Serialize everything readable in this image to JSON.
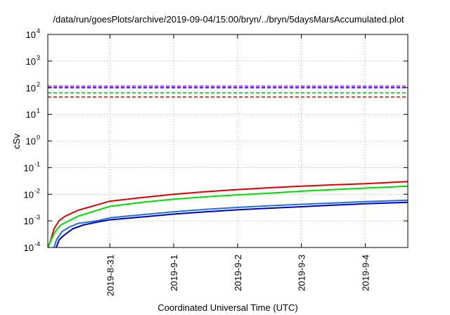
{
  "chart_data": {
    "type": "line",
    "title": "/data/run/goesPlots/archive/2019-09-04/15:00/bryn/../bryn/5daysMarsAccumulated.plot",
    "xlabel": "Coordinated Universal Time (UTC)",
    "ylabel": "cSv",
    "y_scale": "log",
    "ylim": [
      0.0001,
      10000
    ],
    "x_unit": "days (UTC)",
    "xlim": [
      "2019-08-30T00:40",
      "2019-09-04T16:00"
    ],
    "grid": true,
    "legend": "none",
    "y_ticks": [
      {
        "base": "10",
        "exp": "-4",
        "value": 0.0001
      },
      {
        "base": "10",
        "exp": "-3",
        "value": 0.001
      },
      {
        "base": "10",
        "exp": "-2",
        "value": 0.01
      },
      {
        "base": "10",
        "exp": "-1",
        "value": 0.1
      },
      {
        "base": "10",
        "exp": "0",
        "value": 1
      },
      {
        "base": "10",
        "exp": "1",
        "value": 10
      },
      {
        "base": "10",
        "exp": "2",
        "value": 100
      },
      {
        "base": "10",
        "exp": "3",
        "value": 1000
      },
      {
        "base": "10",
        "exp": "4",
        "value": 10000
      }
    ],
    "x_ticks": [
      {
        "label": "2019-8-31",
        "value": "2019-08-31"
      },
      {
        "label": "2019-9-1",
        "value": "2019-09-01"
      },
      {
        "label": "2019-9-2",
        "value": "2019-09-02"
      },
      {
        "label": "2019-9-3",
        "value": "2019-09-03"
      },
      {
        "label": "2019-9-4",
        "value": "2019-09-04"
      }
    ],
    "thresholds": [
      {
        "color": "#9400d3",
        "value": 115
      },
      {
        "color": "#0000ff",
        "value": 100
      },
      {
        "color": "#00c000",
        "value": 65
      },
      {
        "color": "#e00000",
        "value": 45
      }
    ],
    "series": [
      {
        "color": "#e00000",
        "x": [
          "2019-08-30T00:43",
          "2019-08-30T01:50",
          "2019-08-30T03:00",
          "2019-08-30T04:50",
          "2019-08-30T07:12",
          "2019-08-30T12:00",
          "2019-08-30T19:12",
          "2019-08-31T00:00",
          "2019-08-31T12:00",
          "2019-09-01T00:00",
          "2019-09-01T12:00",
          "2019-09-02T00:00",
          "2019-09-02T12:00",
          "2019-09-03T00:00",
          "2019-09-03T12:00",
          "2019-09-04T00:00",
          "2019-09-04T16:00"
        ],
        "values": [
          0.0001,
          0.0002,
          0.0005,
          0.001,
          0.0015,
          0.0025,
          0.004,
          0.0055,
          0.0075,
          0.01,
          0.0125,
          0.015,
          0.0175,
          0.02,
          0.0225,
          0.025,
          0.03
        ]
      },
      {
        "color": "#00e000",
        "x": [
          "2019-08-30T00:43",
          "2019-08-30T02:00",
          "2019-08-30T03:30",
          "2019-08-30T05:30",
          "2019-08-30T08:30",
          "2019-08-30T12:00",
          "2019-08-30T19:12",
          "2019-08-31T00:00",
          "2019-08-31T12:00",
          "2019-09-01T00:00",
          "2019-09-01T12:00",
          "2019-09-02T00:00",
          "2019-09-02T12:00",
          "2019-09-03T00:00",
          "2019-09-03T12:00",
          "2019-09-04T00:00",
          "2019-09-04T16:00"
        ],
        "values": [
          0.0001,
          0.0002,
          0.0004,
          0.0007,
          0.001,
          0.0015,
          0.0025,
          0.0035,
          0.005,
          0.0065,
          0.008,
          0.0095,
          0.011,
          0.013,
          0.015,
          0.017,
          0.02
        ]
      },
      {
        "color": "#1e6fdf",
        "x": [
          "2019-08-30T03:00",
          "2019-08-30T04:00",
          "2019-08-30T06:00",
          "2019-08-30T09:00",
          "2019-08-30T12:00",
          "2019-08-30T19:12",
          "2019-08-31T00:00",
          "2019-08-31T12:00",
          "2019-09-01T00:00",
          "2019-09-01T12:00",
          "2019-09-02T00:00",
          "2019-09-02T12:00",
          "2019-09-03T00:00",
          "2019-09-03T12:00",
          "2019-09-04T00:00",
          "2019-09-04T16:00"
        ],
        "values": [
          0.0001,
          0.0002,
          0.0004,
          0.0006,
          0.0008,
          0.001,
          0.0013,
          0.0017,
          0.0022,
          0.0027,
          0.0032,
          0.0037,
          0.0042,
          0.0047,
          0.0053,
          0.006
        ]
      },
      {
        "color": "#0000c0",
        "x": [
          "2019-08-30T03:50",
          "2019-08-30T05:00",
          "2019-08-30T07:00",
          "2019-08-30T10:00",
          "2019-08-30T14:00",
          "2019-08-30T19:12",
          "2019-08-31T00:00",
          "2019-08-31T12:00",
          "2019-09-01T00:00",
          "2019-09-01T12:00",
          "2019-09-02T00:00",
          "2019-09-02T12:00",
          "2019-09-03T00:00",
          "2019-09-03T12:00",
          "2019-09-04T00:00",
          "2019-09-04T16:00"
        ],
        "values": [
          0.0001,
          0.0002,
          0.0003,
          0.0005,
          0.0007,
          0.0009,
          0.0011,
          0.0014,
          0.0018,
          0.0022,
          0.0026,
          0.003,
          0.0034,
          0.0039,
          0.0044,
          0.005
        ]
      }
    ]
  }
}
